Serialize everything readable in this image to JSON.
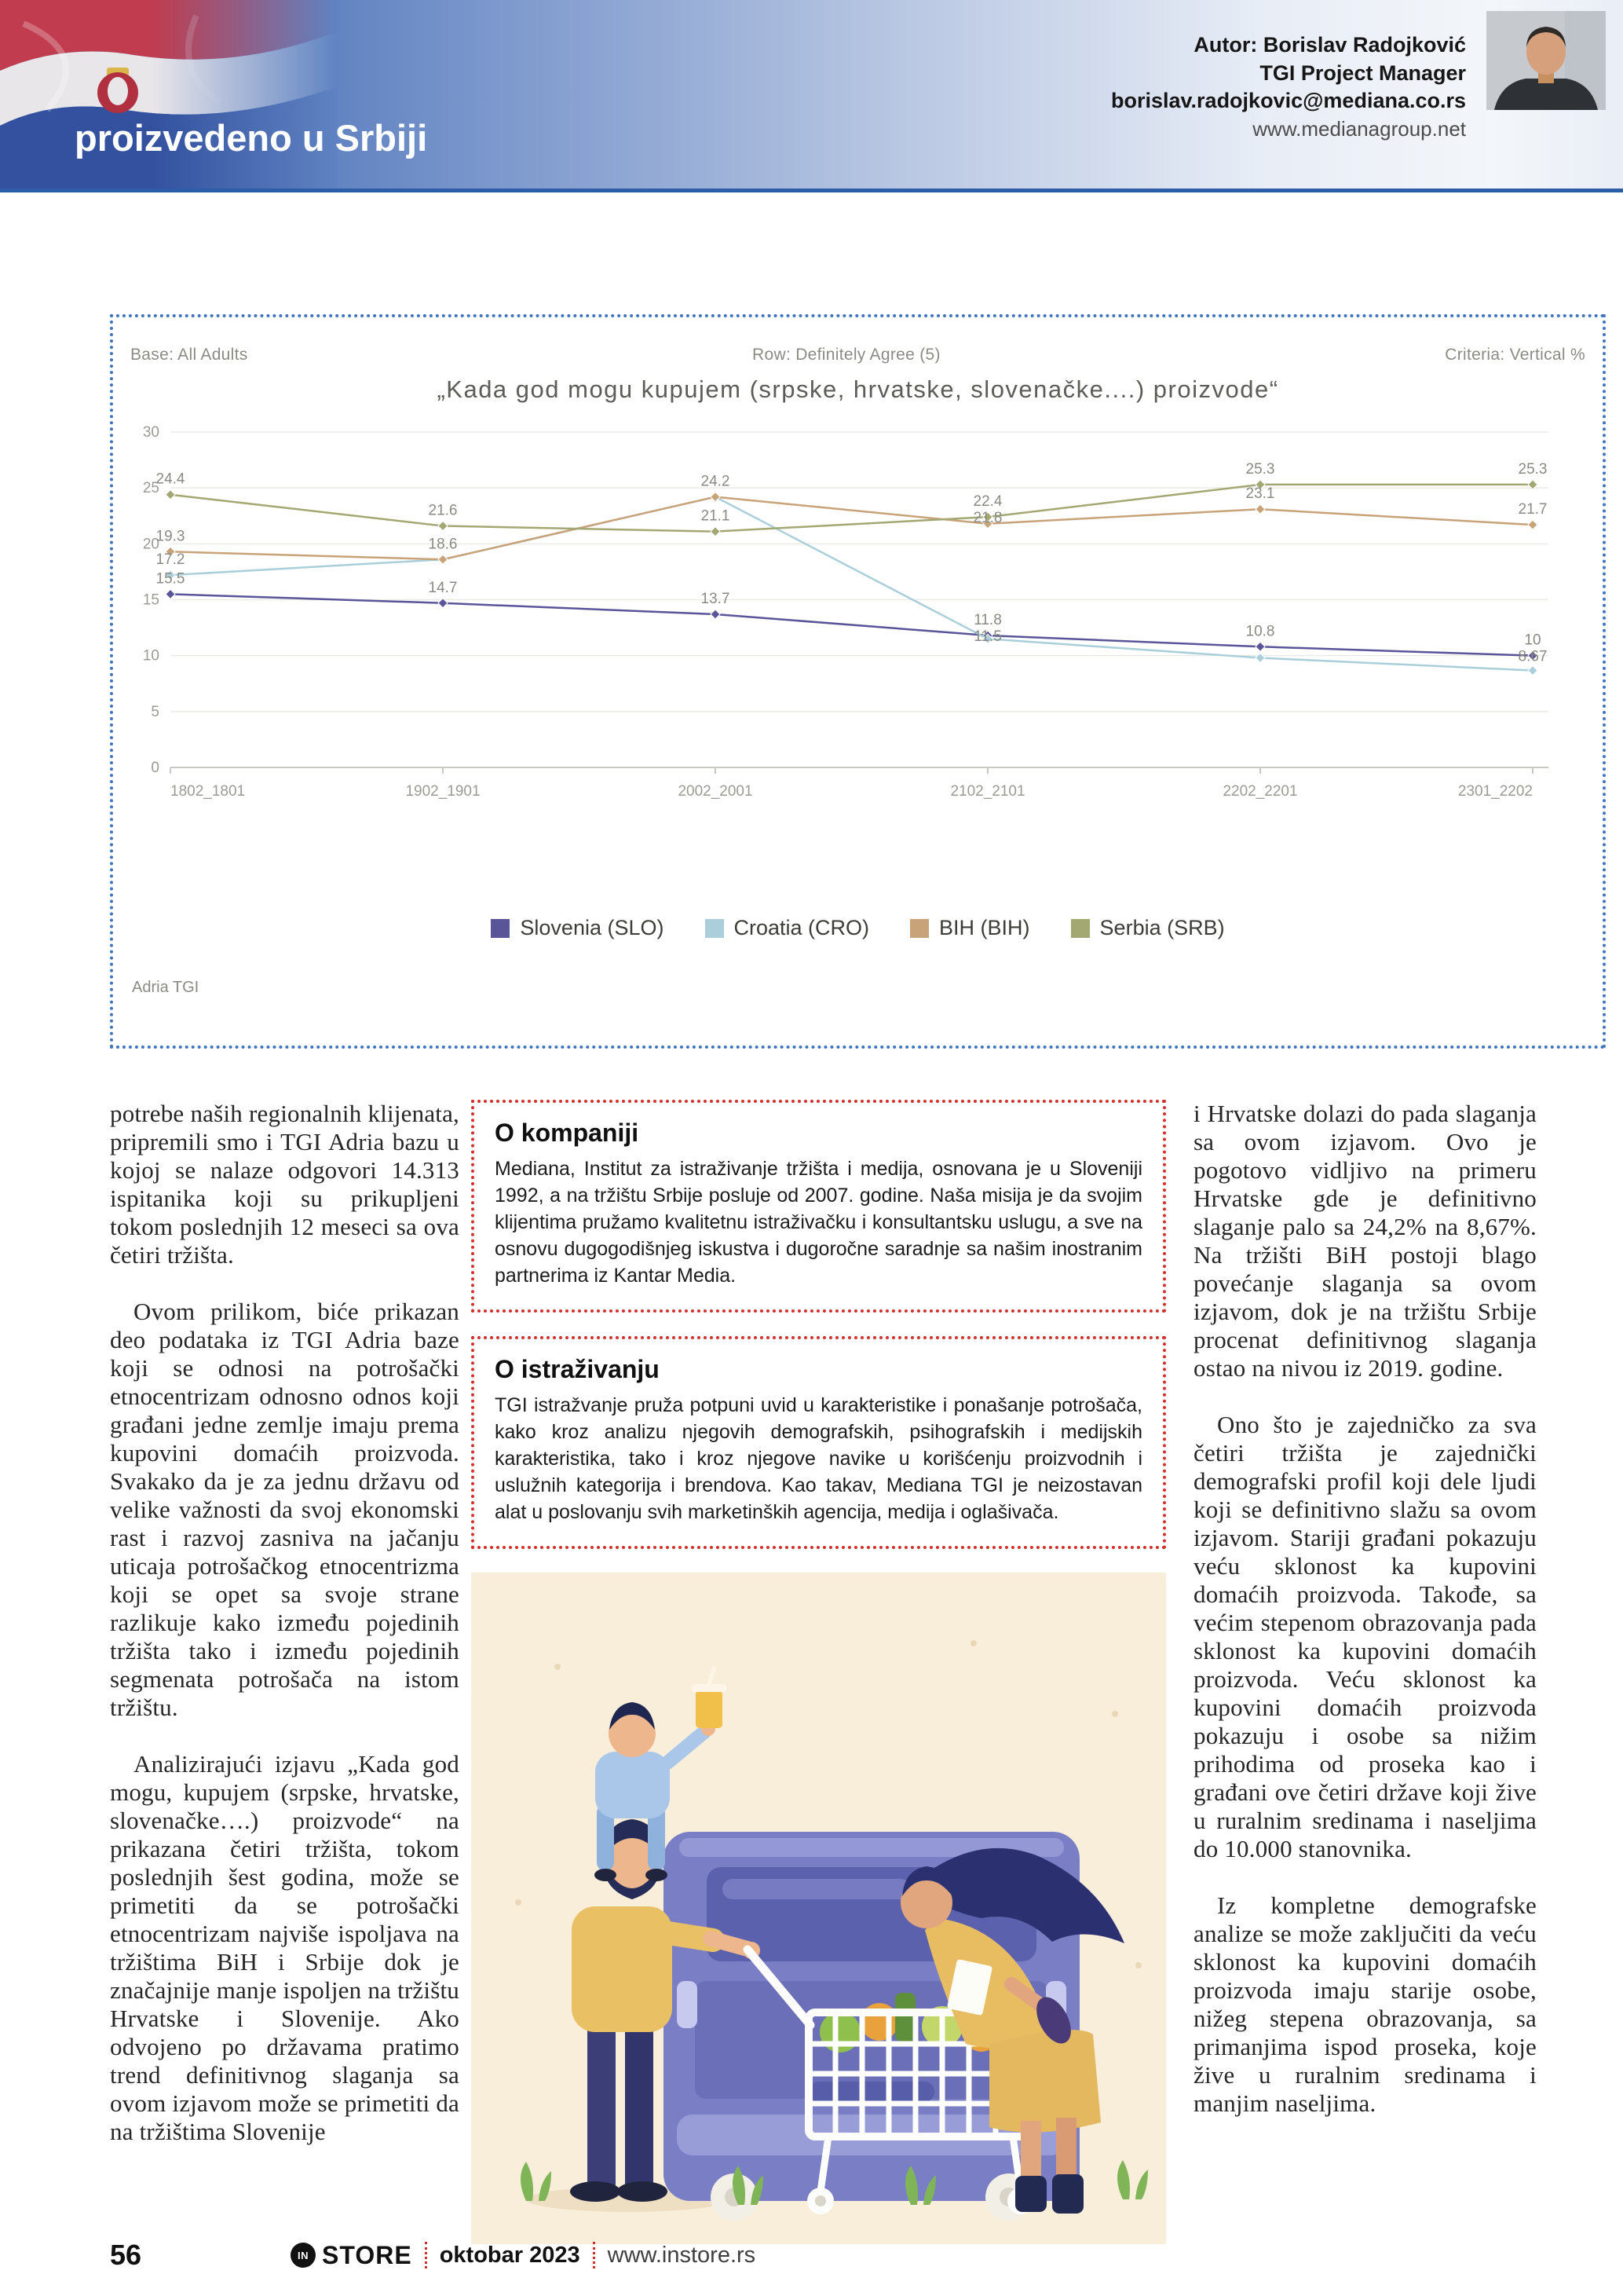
{
  "header": {
    "title": "proizvedeno u Srbiji",
    "author_line1": "Autor: Borislav Radojković",
    "author_line2": "TGI Project Manager",
    "author_line3": "borislav.radojkovic@mediana.co.rs",
    "author_line4": "www.medianagroup.net"
  },
  "chart_meta": {
    "base": "Base: All Adults",
    "row": "Row: Definitely Agree (5)",
    "criteria": "Criteria: Vertical %",
    "source": "Adria TGI"
  },
  "chart_data": {
    "type": "line",
    "title": "„Kada god mogu kupujem (srpske, hrvatske, slovenačke....) proizvode“",
    "categories": [
      "1802_1801",
      "1902_1901",
      "2002_2001",
      "2102_2101",
      "2202_2201",
      "2301_2202"
    ],
    "series": [
      {
        "name": "Slovenia (SLO)",
        "color": "#5a5499",
        "values": [
          15.5,
          14.7,
          13.7,
          11.8,
          10.8,
          10
        ],
        "labels": [
          15.5,
          14.7,
          13.7,
          11.8,
          10.8,
          10
        ]
      },
      {
        "name": "Croatia (CRO)",
        "color": "#aacfdb",
        "values": [
          17.2,
          18.6,
          24.2,
          11.5,
          9.8,
          8.67
        ],
        "labels": [
          17.2,
          null,
          null,
          11.5,
          null,
          8.67
        ]
      },
      {
        "name": "BIH (BIH)",
        "color": "#c8a379",
        "values": [
          19.3,
          18.6,
          24.2,
          21.8,
          23.1,
          21.7
        ],
        "labels": [
          19.3,
          18.6,
          24.2,
          21.8,
          23.1,
          21.7
        ]
      },
      {
        "name": "Serbia (SRB)",
        "color": "#a3a873",
        "values": [
          24.4,
          21.6,
          21.1,
          22.4,
          25.3,
          25.3
        ],
        "labels": [
          24.4,
          21.6,
          21.1,
          22.4,
          25.3,
          25.3
        ]
      }
    ],
    "ylim": [
      0,
      30
    ],
    "yticks": [
      0,
      5,
      10,
      15,
      20,
      25,
      30
    ],
    "grid": true,
    "legend_position": "bottom"
  },
  "article": {
    "col_left": [
      "potrebe naših regionalnih klijenata, pripremili smo i TGI Adria bazu u kojoj se nalaze odgovori 14.313 ispitanika koji su prikupljeni tokom poslednjih 12 meseci sa ova četiri tržišta.",
      "Ovom prilikom, biće prikazan deo podataka iz TGI Adria baze koji se odnosi na potrošački etnocentrizam odnosno odnos koji građani jedne zemlje imaju prema kupovini domaćih proizvoda. Svakako da je za jednu državu od velike važnosti da svoj ekonomski rast i razvoj zasniva na jačanju uticaja potrošačkog etnocentrizma koji se opet sa svoje strane razlikuje kako između pojedinih tržišta tako i između pojedinih segmenata potrošača na istom tržištu.",
      "Analizirajući izjavu „Kada god mogu, kupujem (srpske, hrvatske, slovenačke….) proizvode“ na prikazana četiri tržišta, tokom poslednjih šest godina, može se primetiti da se potrošački etnocentrizam najviše ispoljava na tržištima BiH i Srbije dok je značajnije manje ispoljen na tržištu Hrvatske i Slovenije. Ako odvojeno po državama pratimo trend definitivnog slaganja sa ovom izjavom može se primetiti da na tržištima Slovenije"
    ],
    "col_right": [
      "i Hrvatske dolazi do pada slaganja sa ovom izjavom. Ovo je pogotovo vidljivo na primeru Hrvatske gde je definitivno slaganje palo sa 24,2% na 8,67%. Na tržišti BiH postoji blago povećanje slaganja sa ovom izjavom, dok je na tržištu Srbije procenat definitivnog slaganja ostao na nivou iz 2019. godine.",
      "Ono što je zajedničko za sva četiri tržišta je zajednički demografski profil koji dele ljudi koji se definitivno slažu sa ovom izjavom. Stariji građani pokazuju veću sklonost ka kupovini domaćih proizvoda. Takođe, sa većim stepenom obrazovanja pada sklonost ka kupovini domaćih proizvoda. Veću sklonost ka kupovini domaćih proizvoda pokazuju i osobe sa nižim prihodima od proseka kao i građani ove četiri države koji žive u ruralnim sredinama i naseljima do 10.000 stanovnika.",
      "Iz kompletne demografske analize se može zaključiti da veću sklonost ka kupovini domaćih proizvoda imaju starije osobe, nižeg stepena obrazovanja, sa primanjima ispod proseka, koje žive u ruralnim sredinama i manjim naseljima."
    ]
  },
  "boxes": {
    "company": {
      "title": "O kompaniji",
      "body": "Mediana, Institut za istraživanje tržišta i medija, osnovana je u Sloveniji 1992, a na tržištu Srbije posluje od 2007. godine. Naša misija je da svojim klijentima pružamo kvalitetnu istraživačku i konsultantsku uslugu, a sve na osnovu dugogodišnjeg iskustva i dugoročne saradnje sa našim inostranim partnerima iz Kantar Media."
    },
    "research": {
      "title": "O istraživanju",
      "body": "TGI istražvanje pruža potpuni uvid u karakteristike i ponašanje potrošača, kako kroz analizu njegovih demografskih, psihografskih i medijskih karakteristika, tako i kroz njegove navike u korišćenju proizvodnih i uslužnih kategorija i brendova. Kao takav, Mediana TGI je neizostavan alat u poslovanju svih marketinških agencija, medija i oglašivača."
    }
  },
  "footer": {
    "page_number": "56",
    "brand_in": "IN",
    "brand_store": "STORE",
    "issue": "oktobar 2023",
    "website": "www.instore.rs"
  }
}
